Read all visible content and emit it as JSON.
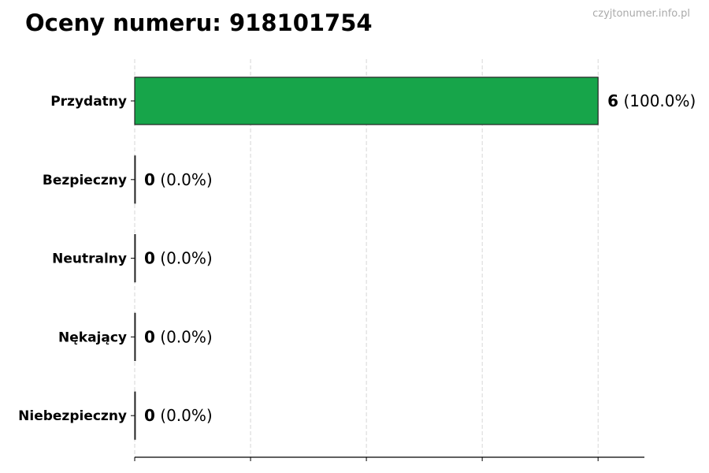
{
  "title": "Oceny numeru: 918101754",
  "watermark": "czyjtonumer.info.pl",
  "chart_data": {
    "type": "bar",
    "orientation": "horizontal",
    "title": "Oceny numeru: 918101754",
    "categories": [
      "Przydatny",
      "Bezpieczny",
      "Neutralny",
      "Nękający",
      "Niebezpieczny"
    ],
    "values": [
      6,
      0,
      0,
      0,
      0
    ],
    "data_labels": [
      "6 (100.0%)",
      "0 (0.0%)",
      "0 (0.0%)",
      "0 (0.0%)",
      "0 (0.0%)"
    ],
    "percentages": [
      "100.0%",
      "0.0%",
      "0.0%",
      "0.0%",
      "0.0%"
    ],
    "xticks": [
      0,
      1.5,
      3,
      4.5,
      6
    ],
    "xlim": [
      0,
      6.6
    ],
    "grid": "vertical dashed",
    "colors": {
      "bar": "#17a54a",
      "edge": "#222222",
      "grid": "#cccccc"
    }
  }
}
